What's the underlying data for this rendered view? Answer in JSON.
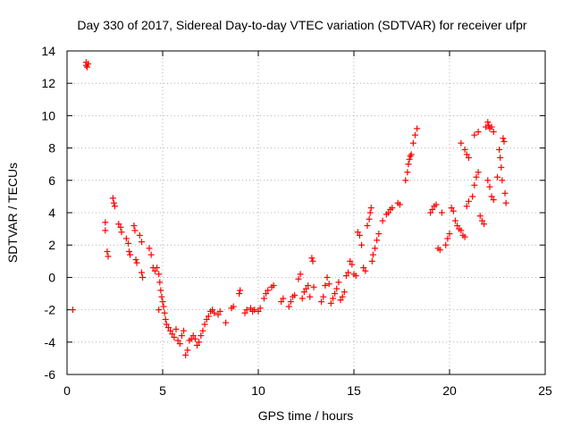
{
  "chart_data": {
    "type": "scatter",
    "title": "Day 330 of 2017, Sidereal Day-to-day VTEC variation (SDTVAR) for receiver ufpr",
    "xlabel": "GPS time / hours",
    "ylabel": "SDTVAR / TECUs",
    "xlim": [
      0,
      25
    ],
    "ylim": [
      -6,
      14
    ],
    "xticks": [
      0,
      5,
      10,
      15,
      20,
      25
    ],
    "yticks": [
      -6,
      -4,
      -2,
      0,
      2,
      4,
      6,
      8,
      10,
      12,
      14
    ],
    "grid": true,
    "marker": "plus",
    "color": "#ff0000",
    "series": [
      {
        "name": "SDTVAR",
        "points": [
          [
            0.3,
            -2.0
          ],
          [
            1.0,
            13.3
          ],
          [
            1.0,
            13.1
          ],
          [
            1.05,
            13.0
          ],
          [
            1.1,
            13.2
          ],
          [
            2.0,
            3.4
          ],
          [
            2.0,
            2.9
          ],
          [
            2.1,
            1.6
          ],
          [
            2.15,
            1.3
          ],
          [
            2.4,
            4.9
          ],
          [
            2.45,
            4.6
          ],
          [
            2.5,
            4.4
          ],
          [
            2.7,
            3.3
          ],
          [
            2.8,
            3.1
          ],
          [
            2.85,
            2.8
          ],
          [
            3.1,
            2.4
          ],
          [
            3.2,
            2.1
          ],
          [
            3.25,
            1.6
          ],
          [
            3.3,
            1.4
          ],
          [
            3.5,
            3.2
          ],
          [
            3.55,
            2.9
          ],
          [
            3.6,
            1.1
          ],
          [
            3.65,
            0.9
          ],
          [
            3.8,
            2.6
          ],
          [
            3.9,
            2.2
          ],
          [
            3.9,
            0.3
          ],
          [
            3.95,
            0.0
          ],
          [
            4.3,
            1.8
          ],
          [
            4.4,
            1.4
          ],
          [
            4.5,
            0.6
          ],
          [
            4.6,
            0.4
          ],
          [
            4.7,
            0.6
          ],
          [
            4.8,
            0.2
          ],
          [
            4.8,
            -2.0
          ],
          [
            4.85,
            -0.3
          ],
          [
            4.9,
            -0.8
          ],
          [
            4.95,
            -1.2
          ],
          [
            5.0,
            -1.5
          ],
          [
            5.05,
            -1.8
          ],
          [
            5.1,
            -2.2
          ],
          [
            5.15,
            -2.6
          ],
          [
            5.2,
            -2.9
          ],
          [
            5.3,
            -3.1
          ],
          [
            5.4,
            -3.3
          ],
          [
            5.5,
            -3.5
          ],
          [
            5.6,
            -3.7
          ],
          [
            5.7,
            -3.2
          ],
          [
            5.8,
            -3.9
          ],
          [
            5.9,
            -4.1
          ],
          [
            6.0,
            -3.6
          ],
          [
            6.1,
            -3.3
          ],
          [
            6.2,
            -4.8
          ],
          [
            6.3,
            -4.5
          ],
          [
            6.4,
            -3.9
          ],
          [
            6.5,
            -3.8
          ],
          [
            6.6,
            -3.6
          ],
          [
            6.7,
            -3.8
          ],
          [
            6.8,
            -4.2
          ],
          [
            6.9,
            -4.0
          ],
          [
            7.0,
            -3.6
          ],
          [
            7.1,
            -3.3
          ],
          [
            7.2,
            -2.9
          ],
          [
            7.3,
            -2.6
          ],
          [
            7.4,
            -2.4
          ],
          [
            7.5,
            -2.1
          ],
          [
            7.6,
            -2.0
          ],
          [
            7.7,
            -2.2
          ],
          [
            7.9,
            -2.3
          ],
          [
            8.0,
            -2.1
          ],
          [
            8.3,
            -2.8
          ],
          [
            8.6,
            -1.9
          ],
          [
            8.7,
            -1.8
          ],
          [
            9.0,
            -1.0
          ],
          [
            9.05,
            -0.8
          ],
          [
            9.3,
            -2.2
          ],
          [
            9.4,
            -2.0
          ],
          [
            9.6,
            -1.9
          ],
          [
            9.7,
            -2.1
          ],
          [
            9.8,
            -2.0
          ],
          [
            10.0,
            -2.1
          ],
          [
            10.1,
            -1.9
          ],
          [
            10.3,
            -1.3
          ],
          [
            10.4,
            -1.0
          ],
          [
            10.5,
            -0.8
          ],
          [
            10.7,
            -0.6
          ],
          [
            10.8,
            -0.5
          ],
          [
            11.2,
            -1.5
          ],
          [
            11.3,
            -1.3
          ],
          [
            11.6,
            -1.8
          ],
          [
            11.7,
            -1.5
          ],
          [
            11.8,
            -1.2
          ],
          [
            11.9,
            -1.1
          ],
          [
            12.1,
            -0.1
          ],
          [
            12.2,
            0.2
          ],
          [
            12.3,
            -1.3
          ],
          [
            12.4,
            -0.9
          ],
          [
            12.5,
            -0.7
          ],
          [
            12.6,
            -0.5
          ],
          [
            12.7,
            -1.2
          ],
          [
            12.8,
            1.2
          ],
          [
            12.85,
            1.0
          ],
          [
            12.9,
            -0.6
          ],
          [
            13.3,
            -1.5
          ],
          [
            13.4,
            -1.2
          ],
          [
            13.5,
            -0.5
          ],
          [
            13.6,
            0.0
          ],
          [
            13.7,
            -0.4
          ],
          [
            13.8,
            -1.6
          ],
          [
            13.9,
            -1.3
          ],
          [
            14.0,
            -1.0
          ],
          [
            14.1,
            -0.7
          ],
          [
            14.2,
            -0.3
          ],
          [
            14.3,
            -1.4
          ],
          [
            14.4,
            -1.2
          ],
          [
            14.5,
            -0.9
          ],
          [
            14.6,
            0.1
          ],
          [
            14.7,
            0.3
          ],
          [
            14.8,
            1.0
          ],
          [
            14.9,
            0.8
          ],
          [
            15.0,
            0.2
          ],
          [
            15.1,
            0.1
          ],
          [
            15.2,
            2.8
          ],
          [
            15.3,
            2.6
          ],
          [
            15.4,
            2.0
          ],
          [
            15.5,
            0.6
          ],
          [
            15.6,
            0.4
          ],
          [
            15.7,
            3.2
          ],
          [
            15.8,
            3.6
          ],
          [
            15.85,
            4.0
          ],
          [
            15.9,
            4.3
          ],
          [
            15.95,
            1.0
          ],
          [
            16.0,
            1.4
          ],
          [
            16.1,
            1.8
          ],
          [
            16.2,
            2.3
          ],
          [
            16.3,
            2.7
          ],
          [
            16.5,
            3.5
          ],
          [
            16.7,
            3.9
          ],
          [
            16.8,
            4.0
          ],
          [
            16.9,
            4.2
          ],
          [
            17.0,
            4.3
          ],
          [
            17.3,
            4.6
          ],
          [
            17.4,
            4.5
          ],
          [
            17.7,
            6.0
          ],
          [
            17.8,
            6.5
          ],
          [
            17.85,
            7.0
          ],
          [
            17.9,
            7.3
          ],
          [
            17.95,
            7.5
          ],
          [
            18.0,
            7.6
          ],
          [
            18.1,
            8.3
          ],
          [
            18.2,
            8.8
          ],
          [
            18.3,
            9.2
          ],
          [
            19.0,
            4.0
          ],
          [
            19.1,
            4.2
          ],
          [
            19.2,
            4.4
          ],
          [
            19.3,
            4.5
          ],
          [
            19.4,
            1.8
          ],
          [
            19.5,
            1.7
          ],
          [
            19.6,
            4.0
          ],
          [
            19.8,
            2.0
          ],
          [
            19.9,
            2.4
          ],
          [
            20.0,
            2.7
          ],
          [
            20.1,
            4.3
          ],
          [
            20.2,
            4.1
          ],
          [
            20.3,
            3.5
          ],
          [
            20.4,
            3.2
          ],
          [
            20.5,
            3.0
          ],
          [
            20.6,
            2.9
          ],
          [
            20.7,
            2.6
          ],
          [
            20.8,
            2.5
          ],
          [
            20.9,
            4.4
          ],
          [
            21.0,
            4.7
          ],
          [
            20.6,
            8.3
          ],
          [
            20.8,
            7.9
          ],
          [
            20.9,
            7.6
          ],
          [
            21.0,
            7.4
          ],
          [
            21.2,
            5.0
          ],
          [
            21.3,
            5.7
          ],
          [
            21.4,
            6.2
          ],
          [
            21.5,
            6.5
          ],
          [
            21.3,
            8.8
          ],
          [
            21.5,
            9.0
          ],
          [
            21.6,
            3.8
          ],
          [
            21.7,
            3.5
          ],
          [
            21.8,
            3.3
          ],
          [
            21.9,
            9.3
          ],
          [
            22.0,
            9.6
          ],
          [
            22.05,
            9.4
          ],
          [
            22.1,
            9.2
          ],
          [
            22.2,
            9.3
          ],
          [
            22.3,
            9.0
          ],
          [
            22.0,
            6.0
          ],
          [
            22.1,
            5.6
          ],
          [
            22.2,
            5.0
          ],
          [
            22.3,
            4.8
          ],
          [
            22.5,
            6.2
          ],
          [
            22.6,
            7.9
          ],
          [
            22.65,
            7.4
          ],
          [
            22.7,
            6.8
          ],
          [
            22.75,
            6.0
          ],
          [
            22.8,
            8.6
          ],
          [
            22.85,
            8.4
          ],
          [
            22.9,
            5.2
          ],
          [
            22.95,
            4.6
          ]
        ]
      }
    ]
  }
}
